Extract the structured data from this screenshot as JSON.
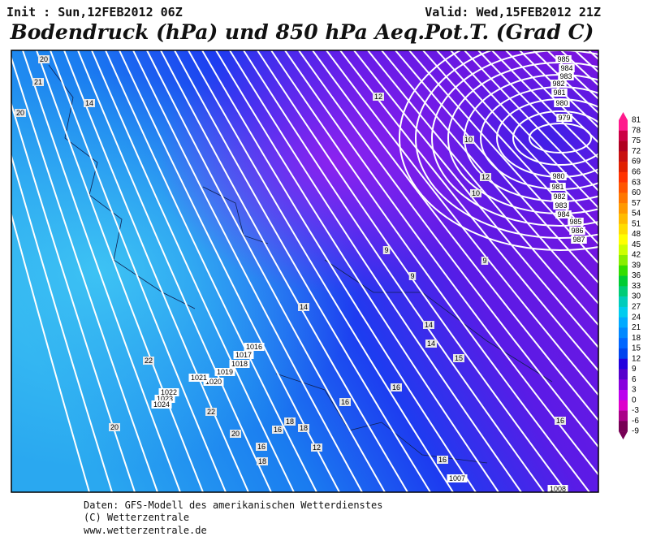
{
  "header": {
    "init": "Init : Sun,12FEB2012 06Z",
    "valid": "Valid: Wed,15FEB2012 21Z",
    "title": "Bodendruck (hPa) und 850 hPa Aeq.Pot.T. (Grad C)"
  },
  "map": {
    "isobar_labels": [
      "985",
      "984",
      "983",
      "982",
      "981",
      "980",
      "979",
      "980",
      "981",
      "982",
      "983",
      "984",
      "985",
      "986",
      "987",
      "1016",
      "1017",
      "1018",
      "1019",
      "1020",
      "1021",
      "1022",
      "1023",
      "1024",
      "1007",
      "1008"
    ],
    "theta_labels": [
      "20",
      "21",
      "20",
      "14",
      "12",
      "10",
      "12",
      "10",
      "9",
      "9",
      "9",
      "14",
      "14",
      "14",
      "15",
      "16",
      "16",
      "22",
      "22",
      "20",
      "20",
      "16",
      "18",
      "18",
      "16",
      "18",
      "12",
      "16",
      "16"
    ]
  },
  "colorbar": {
    "labels": [
      81,
      78,
      75,
      72,
      69,
      66,
      63,
      60,
      57,
      54,
      51,
      48,
      45,
      42,
      39,
      36,
      33,
      30,
      27,
      24,
      21,
      18,
      15,
      12,
      9,
      6,
      3,
      0,
      -3,
      -6,
      -9
    ],
    "colors": [
      "#ff1a8c",
      "#cc0044",
      "#b00020",
      "#c81010",
      "#e02000",
      "#ff3300",
      "#ff5500",
      "#ff7700",
      "#ff9900",
      "#ffbb00",
      "#ffdd00",
      "#ffff00",
      "#ccff00",
      "#88ee00",
      "#33dd00",
      "#00cc33",
      "#00cc77",
      "#00ccbb",
      "#00ccee",
      "#00aaff",
      "#0088ff",
      "#0066ff",
      "#0044ee",
      "#2200dd",
      "#5500cc",
      "#8800dd",
      "#bb00ee",
      "#dd00cc",
      "#aa0088",
      "#770055"
    ]
  },
  "footer": {
    "lines": [
      "Daten: GFS-Modell des amerikanischen Wetterdienstes",
      "(C) Wetterzentrale",
      "www.wetterzentrale.de"
    ]
  }
}
